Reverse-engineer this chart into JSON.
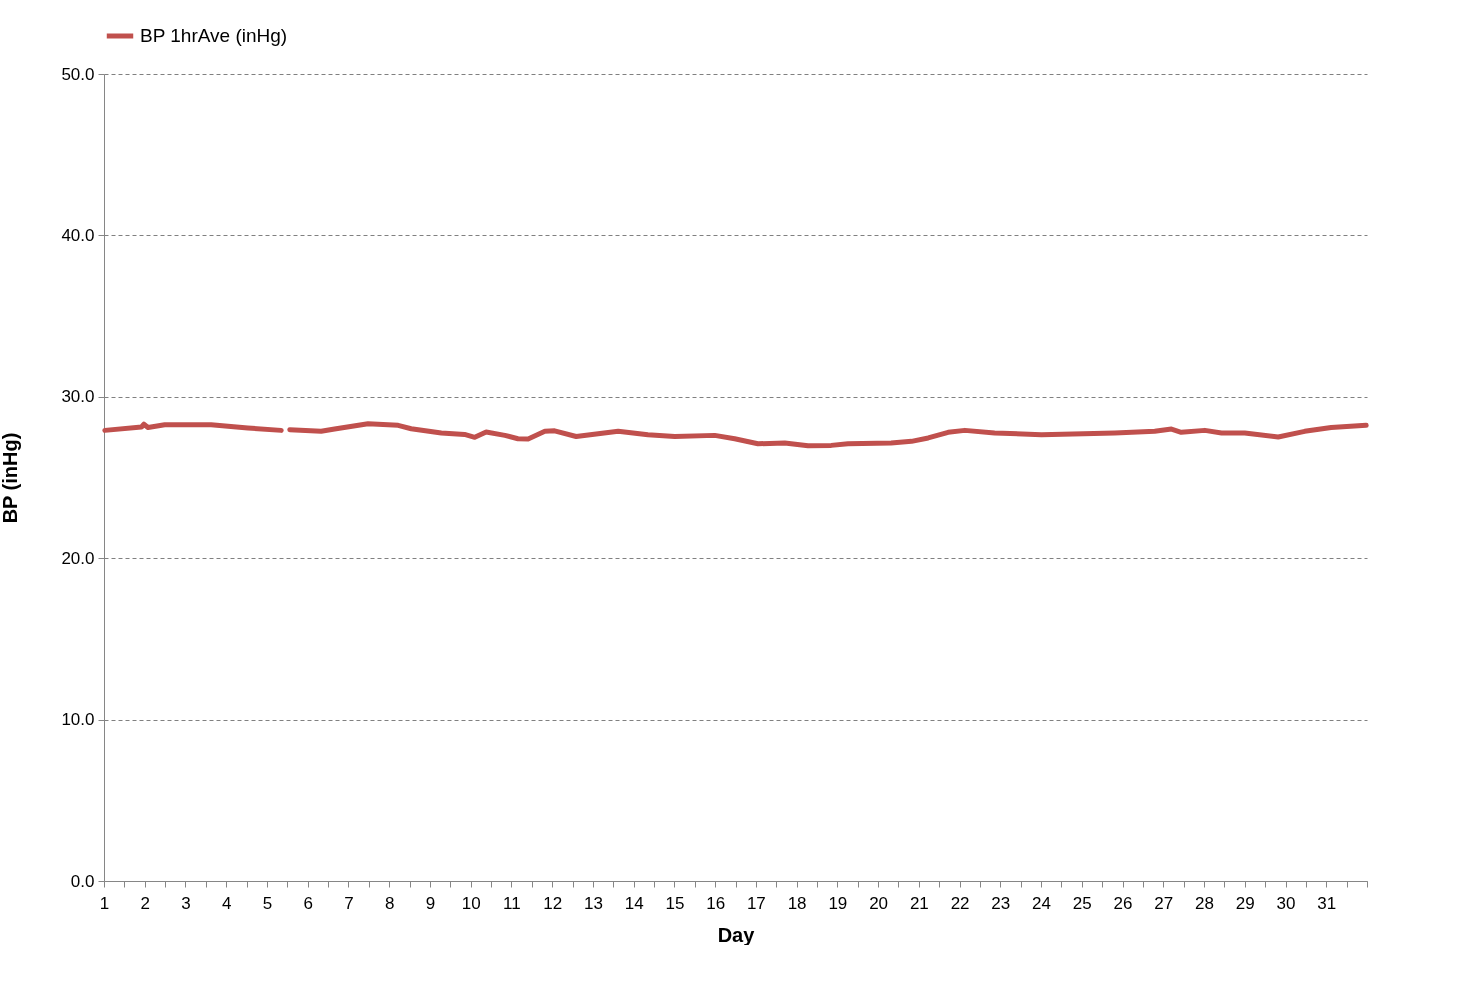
{
  "chart_data": {
    "type": "line",
    "xlabel": "Day",
    "ylabel": "BP (inHg)",
    "xlim": [
      1,
      32
    ],
    "xticks": [
      1,
      {
        "value": 1.5,
        "label": null
      },
      2,
      {
        "value": 2.5,
        "label": null
      },
      3,
      {
        "value": 3.5,
        "label": null
      },
      4,
      {
        "value": 4.5,
        "label": null
      },
      5,
      {
        "value": 5.5,
        "label": null
      },
      6,
      {
        "value": 6.5,
        "label": null
      },
      7,
      {
        "value": 7.5,
        "label": null
      },
      8,
      {
        "value": 8.5,
        "label": null
      },
      9,
      {
        "value": 9.5,
        "label": null
      },
      10,
      {
        "value": 10.5,
        "label": null
      },
      11,
      {
        "value": 11.5,
        "label": null
      },
      12,
      {
        "value": 12.5,
        "label": null
      },
      13,
      {
        "value": 13.5,
        "label": null
      },
      14,
      {
        "value": 14.5,
        "label": null
      },
      15,
      {
        "value": 15.5,
        "label": null
      },
      16,
      {
        "value": 16.5,
        "label": null
      },
      17,
      {
        "value": 17.5,
        "label": null
      },
      18,
      {
        "value": 18.5,
        "label": null
      },
      19,
      {
        "value": 19.5,
        "label": null
      },
      20,
      {
        "value": 20.5,
        "label": null
      },
      21,
      {
        "value": 21.5,
        "label": null
      },
      22,
      {
        "value": 22.5,
        "label": null
      },
      23,
      {
        "value": 23.5,
        "label": null
      },
      24,
      {
        "value": 24.5,
        "label": null
      },
      25,
      {
        "value": 25.5,
        "label": null
      },
      26,
      {
        "value": 26.5,
        "label": null
      },
      27,
      {
        "value": 27.5,
        "label": null
      },
      28,
      {
        "value": 28.5,
        "label": null
      },
      29,
      {
        "value": 29.5,
        "label": null
      },
      30,
      {
        "value": 30.5,
        "label": null
      },
      31,
      {
        "value": 31.5,
        "label": null
      },
      {
        "value": 32,
        "label": null
      }
    ],
    "ylim": [
      0,
      50
    ],
    "yticks": [
      {
        "value": 0,
        "label": "0.0"
      },
      {
        "value": 10,
        "label": "10.0"
      },
      {
        "value": 20,
        "label": "20.0"
      },
      {
        "value": 30,
        "label": "30.0"
      },
      {
        "value": 40,
        "label": "40.0"
      },
      {
        "value": 50,
        "label": "50.0"
      }
    ],
    "grid": "y",
    "legend": "top",
    "marker": "none",
    "line_style": "solid",
    "series": [
      {
        "name": "BP 1hrAve (inHg)",
        "color": "#c0504d",
        "x": [
          1.02,
          1.92,
          1.98,
          2.08,
          2.49,
          3.63,
          4.53,
          5.35,
          5.45,
          5.56,
          6.33,
          6.66,
          7.48,
          8.22,
          8.54,
          9.28,
          9.85,
          10.1,
          10.38,
          10.84,
          11.16,
          11.41,
          11.82,
          12.06,
          12.59,
          13.62,
          14.35,
          15.01,
          15.99,
          16.48,
          17.05,
          17.71,
          18.28,
          18.85,
          19.26,
          20.32,
          20.82,
          21.23,
          21.72,
          22.13,
          22.86,
          24.01,
          25.81,
          26.79,
          27.2,
          27.44,
          28.02,
          28.43,
          29.0,
          29.82,
          30.47,
          31.12,
          31.98
        ],
        "values": [
          27.92,
          28.13,
          28.3,
          28.1,
          28.27,
          28.27,
          28.07,
          27.92,
          null,
          27.96,
          27.86,
          28.0,
          28.33,
          28.23,
          28.02,
          27.76,
          27.67,
          27.49,
          27.82,
          27.61,
          27.4,
          27.39,
          27.86,
          27.89,
          27.54,
          27.86,
          27.65,
          27.54,
          27.61,
          27.4,
          27.09,
          27.14,
          26.97,
          26.99,
          27.09,
          27.14,
          27.24,
          27.45,
          27.8,
          27.92,
          27.76,
          27.65,
          27.76,
          27.86,
          28.0,
          27.8,
          27.92,
          27.76,
          27.76,
          27.51,
          27.86,
          28.1,
          28.23
        ]
      }
    ]
  }
}
